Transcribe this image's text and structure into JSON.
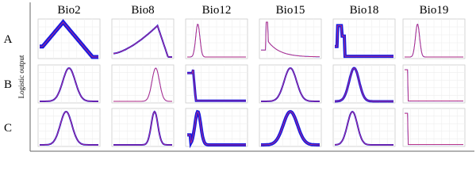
{
  "columns": [
    "Bio2",
    "Bio8",
    "Bio12",
    "Bio15",
    "Bio18",
    "Bio19"
  ],
  "rows": [
    "A",
    "B",
    "C"
  ],
  "y_label": "Logistic output"
}
